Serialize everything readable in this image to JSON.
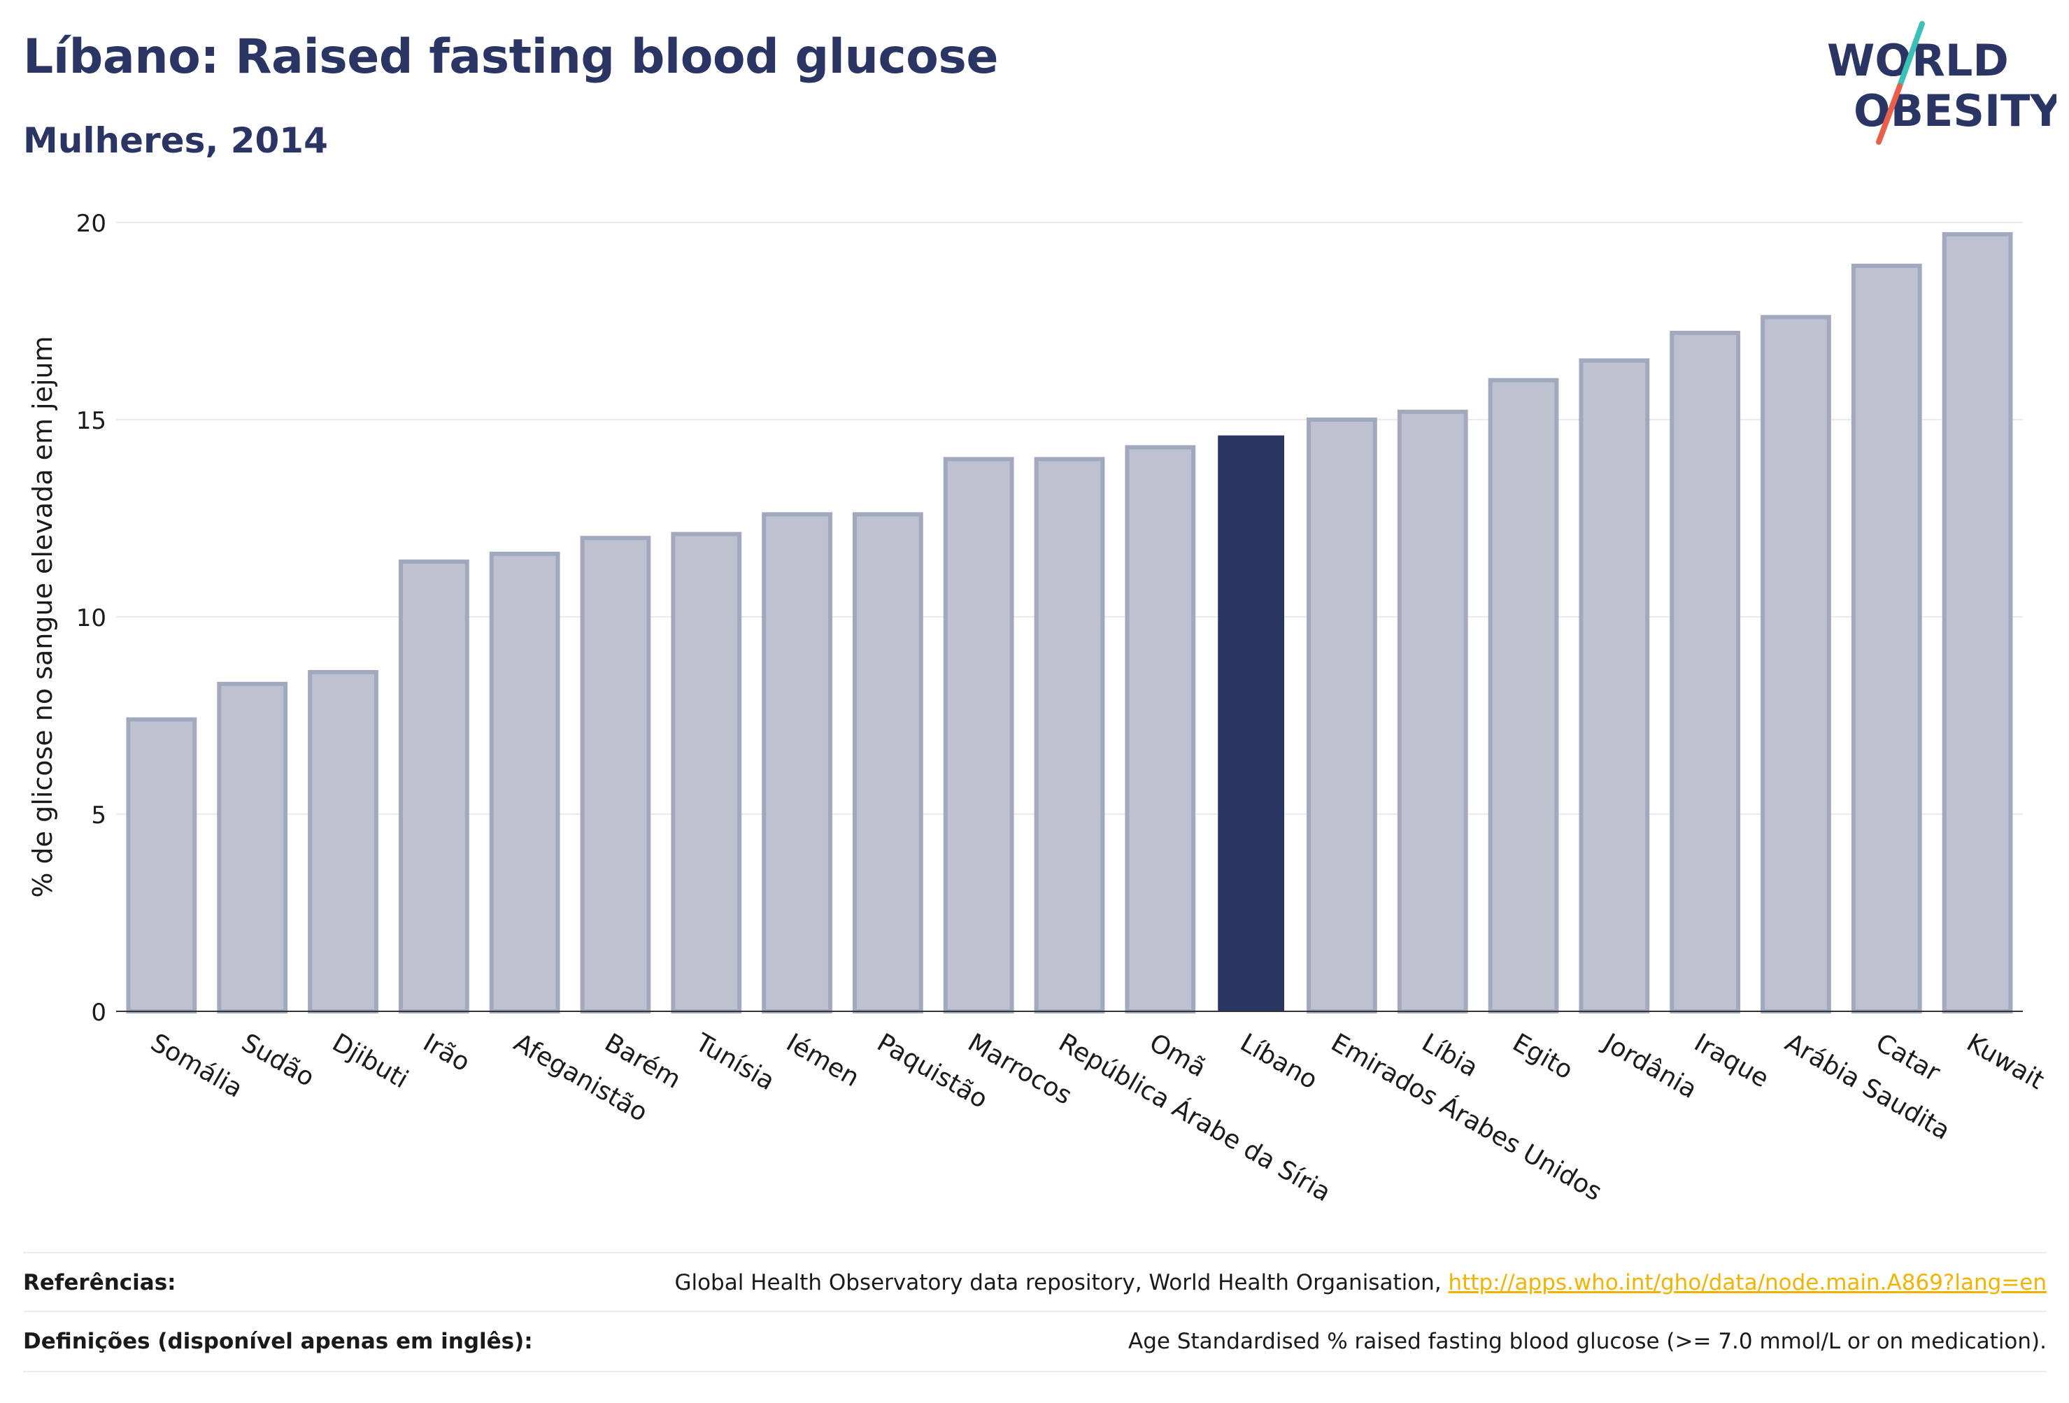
{
  "header": {
    "title": "Líbano: Raised fasting blood glucose",
    "subtitle": "Mulheres, 2014"
  },
  "logo": {
    "line1": "WORLD",
    "line2": "OBESITY",
    "slash_colors": [
      "#3bbfb7",
      "#e8604c"
    ]
  },
  "colors": {
    "bar": "#bec1cf",
    "bar_border": "#a2a8bd",
    "highlight": "#2b3563",
    "text": "#2b3563",
    "grid": "#e9ebf1",
    "link": "#f0b400"
  },
  "chart_data": {
    "type": "bar",
    "ylabel": "% de glicose no sangue elevada em jejum",
    "xlabel": "",
    "ylim": [
      0,
      20
    ],
    "yticks": [
      0,
      5,
      10,
      15,
      20
    ],
    "grid": true,
    "highlight": "Líbano",
    "categories": [
      "Somália",
      "Sudão",
      "Djibuti",
      "Irão",
      "Afeganistão",
      "Barém",
      "Tunísia",
      "Iémen",
      "Paquistão",
      "Marrocos",
      "República Árabe da Síria",
      "Omã",
      "Líbano",
      "Emirados Árabes Unidos",
      "Líbia",
      "Egito",
      "Jordânia",
      "Iraque",
      "Arábia Saudita",
      "Catar",
      "Kuwait"
    ],
    "values": [
      7.4,
      8.3,
      8.6,
      11.4,
      11.6,
      12.0,
      12.1,
      12.6,
      12.6,
      14.0,
      14.0,
      14.3,
      14.6,
      15.0,
      15.2,
      16.0,
      16.5,
      17.2,
      17.6,
      18.9,
      19.7
    ]
  },
  "footer": {
    "references_label": "Referências:",
    "references_text": "Global Health Observatory data repository, World Health Organisation, ",
    "references_link": "http://apps.who.int/gho/data/node.main.A869?lang=en",
    "definitions_label": "Definições (disponível apenas em inglês):",
    "definitions_text": "Age Standardised % raised fasting blood glucose (>= 7.0 mmol/L or on medication)."
  }
}
